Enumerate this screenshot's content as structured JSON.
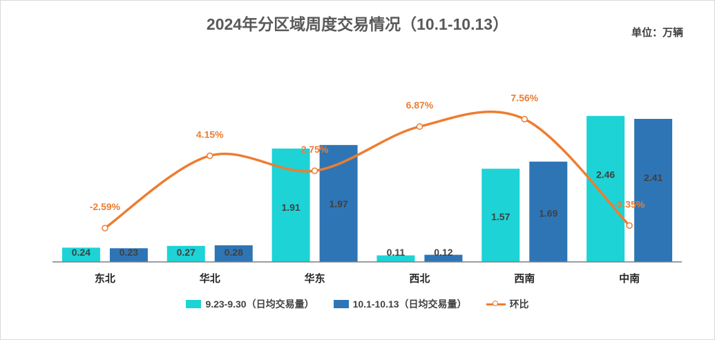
{
  "colors": {
    "series1": "#1dd3d6",
    "series2": "#2e75b6",
    "line": "#ed7d31",
    "axis": "#7f7f7f",
    "label": "#404040"
  },
  "header": {
    "title": "2024年分区域周度交易情况（10.1-10.13）",
    "unit": "单位：万辆"
  },
  "legend": {
    "series1": "9.23-9.30（日均交易量）",
    "series2": "10.1-10.13（日均交易量）",
    "line": "环比"
  },
  "chart_data": {
    "type": "bar",
    "title": "2024年分区域周度交易情况（10.1-10.13）",
    "categories": [
      "东北",
      "华北",
      "华东",
      "西北",
      "西南",
      "中南"
    ],
    "series": [
      {
        "name": "9.23-9.30（日均交易量）",
        "values": [
          0.24,
          0.27,
          1.91,
          0.11,
          1.57,
          2.46
        ],
        "labels": [
          "0.24",
          "0.27",
          "1.91",
          "0.11",
          "1.57",
          "2.46"
        ]
      },
      {
        "name": "10.1-10.13（日均交易量）",
        "values": [
          0.23,
          0.28,
          1.97,
          0.12,
          1.69,
          2.41
        ],
        "labels": [
          "0.23",
          "0.28",
          "1.97",
          "0.12",
          "1.69",
          "2.41"
        ]
      }
    ],
    "line_series": {
      "name": "环比",
      "values": [
        -2.59,
        4.15,
        2.75,
        6.87,
        7.56,
        -2.35
      ],
      "labels": [
        "-2.59%",
        "4.15%",
        "2.75%",
        "6.87%",
        "7.56%",
        "-2.35%"
      ],
      "ylim": [
        -4,
        9
      ]
    },
    "ylim": [
      0,
      2.55
    ],
    "unit": "万辆"
  }
}
